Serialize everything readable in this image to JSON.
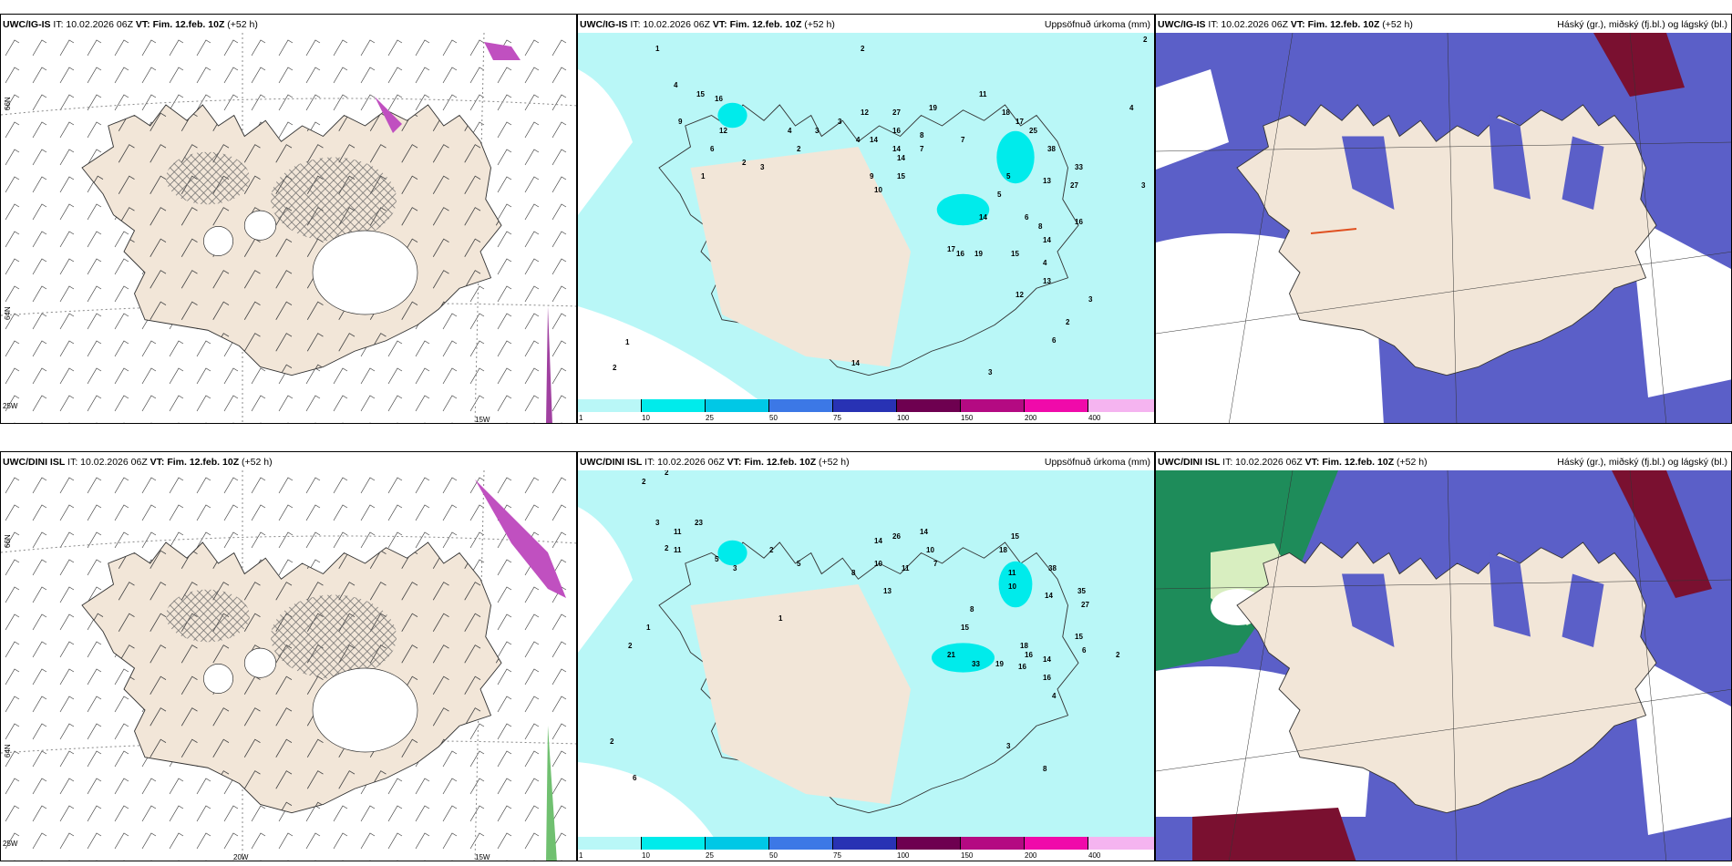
{
  "panels": [
    {
      "id": "r1c1",
      "title_model": "UWC/IG-IS",
      "title_it": "IT: 10.02.2026 06Z",
      "title_vt": "VT: Fim. 12.feb. 10Z",
      "title_lead": "(+52 h)",
      "right": "",
      "lat1": "66N",
      "lat2": "64N",
      "lon1": "25W",
      "lon2": "",
      "lon3": "15W"
    },
    {
      "id": "r1c2",
      "title_model": "UWC/IG-IS",
      "title_it": "IT: 10.02.2026 06Z",
      "title_vt": "VT: Fim. 12.feb. 10Z",
      "title_lead": "(+52 h)",
      "right": "Uppsöfnuð úrkoma (mm)"
    },
    {
      "id": "r1c3",
      "title_model": "UWC/IG-IS",
      "title_it": "IT: 10.02.2026 06Z",
      "title_vt": "VT: Fim. 12.feb. 10Z",
      "title_lead": "(+52 h)",
      "right": "Háský (gr.), miðský (fj.bl.) og lágský (bl.)"
    },
    {
      "id": "r2c1",
      "title_model": "UWC/DINI ISL",
      "title_it": "IT: 10.02.2026 06Z",
      "title_vt": "VT: Fim. 12.feb. 10Z",
      "title_lead": "(+52 h)",
      "right": "",
      "lat1": "66N",
      "lat2": "64N",
      "lon1": "25W",
      "lon2": "20W",
      "lon3": "15W"
    },
    {
      "id": "r2c2",
      "title_model": "UWC/DINI ISL",
      "title_it": "IT: 10.02.2026 06Z",
      "title_vt": "VT: Fim. 12.feb. 10Z",
      "title_lead": "(+52 h)",
      "right": "Uppsöfnuð úrkoma (mm)"
    },
    {
      "id": "r2c3",
      "title_model": "UWC/DINI ISL",
      "title_it": "IT: 10.02.2026 06Z",
      "title_vt": "VT: Fim. 12.feb. 10Z",
      "title_lead": "(+52 h)",
      "right": "Háský (gr.), miðský (fj.bl.) og lágský (bl.)"
    }
  ],
  "colorbar": {
    "ticks": [
      "1",
      "10",
      "25",
      "50",
      "75",
      "100",
      "150",
      "200",
      "400"
    ],
    "colors": [
      "#b9f7f7",
      "#00ebeb",
      "#00c8e6",
      "#3c78e6",
      "#2832b4",
      "#6e0050",
      "#b40a82",
      "#f00aaa",
      "#f5b4f0"
    ]
  },
  "precip_labels_top": [
    "1",
    "4",
    "15",
    "16",
    "12",
    "9",
    "6",
    "3",
    "4",
    "2",
    "2",
    "3",
    "3",
    "12",
    "27",
    "14",
    "19",
    "11",
    "18",
    "4",
    "9",
    "16",
    "14",
    "8",
    "7",
    "10",
    "17",
    "25",
    "14",
    "15",
    "5",
    "38",
    "7",
    "33",
    "27",
    "13",
    "16",
    "5",
    "14",
    "6",
    "8",
    "17",
    "16",
    "19",
    "15",
    "14",
    "4",
    "13",
    "12",
    "3",
    "2",
    "6",
    "14",
    "3",
    "2",
    "1",
    "2",
    "1",
    "2",
    "4",
    "3"
  ],
  "precip_labels_bottom": [
    "2",
    "2",
    "3",
    "11",
    "23",
    "5",
    "2",
    "5",
    "3",
    "2",
    "11",
    "14",
    "26",
    "14",
    "10",
    "8",
    "10",
    "11",
    "7",
    "18",
    "15",
    "38",
    "14",
    "27",
    "35",
    "11",
    "13",
    "15",
    "10",
    "16",
    "8",
    "21",
    "33",
    "19",
    "16",
    "18",
    "14",
    "16",
    "15",
    "6",
    "2",
    "4",
    "8",
    "1",
    "2",
    "3",
    "6",
    "2",
    "1"
  ],
  "colors": {
    "land": "#f2e6d8",
    "sea_precip": "#b9f7f7",
    "cloud_low": "#5b5fc8",
    "cloud_mid": "#5aa8ee",
    "cloud_high": "#1e8c5a",
    "cloud_dark": "#7a1030"
  }
}
